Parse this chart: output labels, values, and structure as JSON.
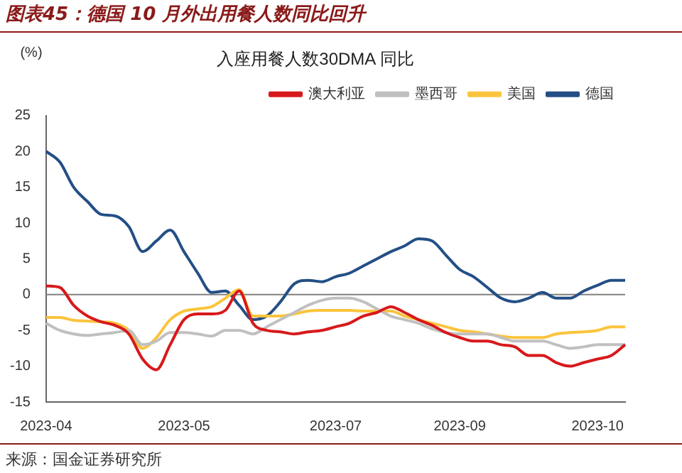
{
  "chart_data": {
    "type": "line",
    "title": "图表45：德国 10 月外出用餐人数同比回升",
    "subtitle": "入座用餐人数30DMA 同比",
    "ylabel": "(%)",
    "annotations": [
      "来源：国金证券研究所"
    ],
    "categories": [
      "2023-04",
      null,
      null,
      null,
      null,
      null,
      null,
      null,
      null,
      null,
      "2023-05",
      null,
      null,
      null,
      null,
      null,
      null,
      null,
      null,
      null,
      null,
      "2023-07",
      null,
      null,
      null,
      null,
      null,
      null,
      null,
      null,
      "2023-09",
      null,
      null,
      null,
      null,
      null,
      null,
      null,
      null,
      null,
      "2023-10",
      null,
      null
    ],
    "series": [
      {
        "name": "澳大利亚",
        "color": "#d7191c",
        "values": [
          1.2,
          1,
          -1.5,
          -3,
          -3.8,
          -4.3,
          -5.5,
          -9,
          -10.5,
          -7,
          -3.5,
          -2.7,
          -2.7,
          -2.2,
          0.5,
          -4,
          -5,
          -5.2,
          -5.5,
          -5.2,
          -5,
          -4.5,
          -4,
          -3,
          -2.5,
          -1.7,
          -2.5,
          -3.5,
          -4.3,
          -5.3,
          -6,
          -6.5,
          -6.5,
          -7,
          -7.3,
          -8.5,
          -8.5,
          -9.5,
          -10,
          -9.5,
          -9,
          -8.5,
          -7
        ]
      },
      {
        "name": "墨西哥",
        "color": "#c0c0c0",
        "values": [
          -4,
          -5,
          -5.5,
          -5.7,
          -5.5,
          -5.3,
          -5,
          -7,
          -6.5,
          -5.3,
          -5.3,
          -5.5,
          -5.8,
          -5,
          -5,
          -5.5,
          -4.5,
          -3.5,
          -2.5,
          -1.5,
          -0.8,
          -0.5,
          -0.5,
          -1,
          -2,
          -3,
          -3.5,
          -4,
          -4.8,
          -5.3,
          -5.5,
          -5.5,
          -5.5,
          -6,
          -6.5,
          -6.5,
          -6.5,
          -7,
          -7.5,
          -7.3,
          -7,
          -7,
          -7
        ]
      },
      {
        "name": "美国",
        "color": "#fbc43d",
        "values": [
          -3.2,
          -3.2,
          -3.6,
          -3.7,
          -3.8,
          -4,
          -5,
          -7.5,
          -6,
          -3.5,
          -2.3,
          -2,
          -1.7,
          -0.5,
          0.7,
          -3,
          -3,
          -3,
          -2.7,
          -2.3,
          -2.2,
          -2.2,
          -2.2,
          -2.3,
          -2.3,
          -2.3,
          -3,
          -3.5,
          -4,
          -4.5,
          -5,
          -5.2,
          -5.5,
          -5.8,
          -6,
          -6,
          -6,
          -5.5,
          -5.3,
          -5.2,
          -5,
          -4.5,
          -4.5
        ]
      },
      {
        "name": "德国",
        "color": "#244f86",
        "values": [
          20,
          18.5,
          15,
          13,
          11.2,
          11,
          9.5,
          6,
          7.5,
          9,
          6,
          3,
          0.3,
          0.5,
          -1.5,
          -3.5,
          -3,
          -1,
          1.5,
          2,
          1.8,
          2.5,
          3,
          4,
          5,
          6,
          6.8,
          7.8,
          7.5,
          5.5,
          3.5,
          2.5,
          1,
          -0.5,
          -1,
          -0.5,
          0.3,
          -0.5,
          -0.5,
          0.5,
          1.3,
          2,
          2
        ]
      }
    ],
    "ylim": [
      -15,
      25
    ],
    "yticks": [
      -15,
      -10,
      -5,
      0,
      5,
      10,
      15,
      20,
      25
    ],
    "ref_lines": [
      {
        "axis": "y",
        "value": 0,
        "color": "#808080"
      }
    ],
    "grid": false,
    "legend": "top",
    "marker": "none",
    "line_style": "solid"
  }
}
